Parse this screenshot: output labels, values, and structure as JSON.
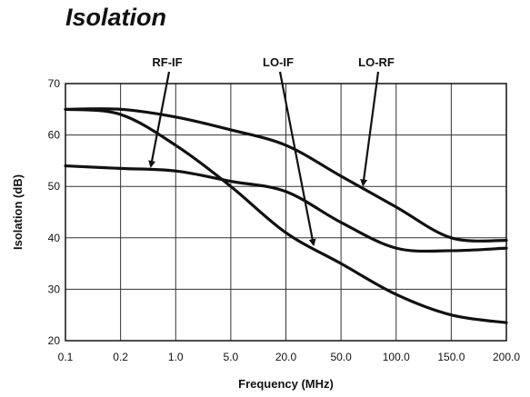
{
  "chart_data": {
    "type": "line",
    "title": "Isolation",
    "xlabel": "Frequency (MHz)",
    "ylabel": "Isolation (dB)",
    "x_categories": [
      "0.1",
      "0.2",
      "1.0",
      "5.0",
      "20.0",
      "50.0",
      "100.0",
      "150.0",
      "200.0"
    ],
    "yticks": [
      "20",
      "30",
      "40",
      "50",
      "60",
      "70"
    ],
    "ylim": [
      20,
      70
    ],
    "grid": true,
    "series": [
      {
        "name": "LO-RF",
        "points": [
          [
            0,
            65
          ],
          [
            1,
            65
          ],
          [
            2,
            63.5
          ],
          [
            3,
            61
          ],
          [
            4,
            58
          ],
          [
            5,
            52
          ],
          [
            6,
            46
          ],
          [
            7,
            40
          ],
          [
            8,
            39.5
          ]
        ]
      },
      {
        "name": "RF-IF",
        "points": [
          [
            0,
            54
          ],
          [
            1,
            53.5
          ],
          [
            2,
            53
          ],
          [
            3,
            51
          ],
          [
            4,
            49
          ],
          [
            5,
            43
          ],
          [
            6,
            38
          ],
          [
            7,
            37.5
          ],
          [
            8,
            38
          ]
        ]
      },
      {
        "name": "LO-IF",
        "points": [
          [
            0,
            65
          ],
          [
            1,
            64
          ],
          [
            2,
            58
          ],
          [
            3,
            50
          ],
          [
            4,
            41
          ],
          [
            5,
            35
          ],
          [
            6,
            29
          ],
          [
            7,
            25
          ],
          [
            8,
            23.5
          ]
        ]
      }
    ],
    "annotations": [
      {
        "text": "RF-IF",
        "target_series": "RF-IF",
        "target_x": 1.55
      },
      {
        "text": "LO-IF",
        "target_series": "LO-IF",
        "target_x": 4.5
      },
      {
        "text": "LO-RF",
        "target_series": "LO-RF",
        "target_x": 5.4
      }
    ]
  }
}
